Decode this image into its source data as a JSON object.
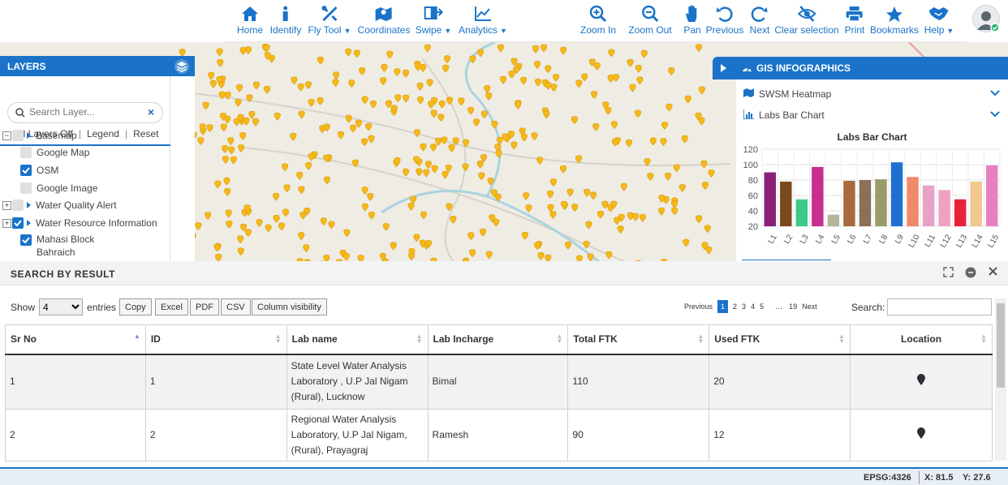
{
  "toolbar": {
    "tools": [
      {
        "label": "Home",
        "icon": "home-icon",
        "dropdown": false
      },
      {
        "label": "Identify",
        "icon": "info-icon",
        "dropdown": false
      },
      {
        "label": "Fly Tool",
        "icon": "fly-tool-icon",
        "dropdown": true
      },
      {
        "label": "Coordinates",
        "icon": "map-coordinates-icon",
        "dropdown": false
      },
      {
        "label": "Swipe",
        "icon": "swipe-icon",
        "dropdown": true
      },
      {
        "label": "Analytics",
        "icon": "analytics-icon",
        "dropdown": true
      },
      {
        "label": "Zoom In",
        "icon": "zoom-in-icon",
        "dropdown": false
      },
      {
        "label": "Zoom Out",
        "icon": "zoom-out-icon",
        "dropdown": false
      },
      {
        "label": "Pan",
        "icon": "pan-hand-icon",
        "dropdown": false
      },
      {
        "label": "Previous",
        "icon": "undo-icon",
        "dropdown": false
      },
      {
        "label": "Next",
        "icon": "redo-icon",
        "dropdown": false
      },
      {
        "label": "Clear selection",
        "icon": "eye-slash-icon",
        "dropdown": false
      },
      {
        "label": "Print",
        "icon": "print-icon",
        "dropdown": false
      },
      {
        "label": "Bookmarks",
        "icon": "star-icon",
        "dropdown": false
      },
      {
        "label": "Help",
        "icon": "handshake-icon",
        "dropdown": true
      }
    ]
  },
  "layers": {
    "title": "LAYERS",
    "search_placeholder": "Search Layer...",
    "actions": [
      "All Layers Off",
      "Legend",
      "Reset"
    ],
    "items": [
      {
        "label": "Basemap",
        "checked": false,
        "expand": "minus",
        "group": true
      },
      {
        "label": "Google Map",
        "checked": false,
        "expand": "",
        "group": false
      },
      {
        "label": "OSM",
        "checked": true,
        "expand": "",
        "group": false
      },
      {
        "label": "Google Image",
        "checked": false,
        "expand": "",
        "group": false
      },
      {
        "label": "Water Quality Alert",
        "checked": false,
        "expand": "plus",
        "group": true
      },
      {
        "label": "Water Resource Information",
        "checked": true,
        "expand": "plus",
        "group": true
      },
      {
        "label": "Mahasi Block",
        "label2": "Bahraich",
        "checked": true,
        "expand": "",
        "group": false
      }
    ]
  },
  "infographics": {
    "title": "GIS INFOGRAPHICS",
    "sections": [
      "SWSM Heatmap",
      "Labs Bar Chart"
    ]
  },
  "chart_data": {
    "type": "bar",
    "title": "Labs Bar Chart",
    "categories": [
      "L1",
      "L2",
      "L3",
      "L4",
      "L5",
      "L6",
      "L7",
      "L8",
      "L9",
      "L10",
      "L11",
      "L12",
      "L13",
      "L14",
      "L15"
    ],
    "values": [
      90,
      78,
      55,
      97,
      35,
      79,
      80,
      81,
      103,
      84,
      73,
      67,
      55,
      78,
      99
    ],
    "colors": [
      "#8a1f7a",
      "#7a4a1e",
      "#3cc98c",
      "#c62e8f",
      "#b5b59c",
      "#a86a3e",
      "#8c6f5a",
      "#9b9b6a",
      "#1f6fd1",
      "#f08a6a",
      "#e8a2c8",
      "#f0a0c0",
      "#e8223a",
      "#f0c890",
      "#e880c0"
    ],
    "ylim": [
      20,
      120
    ],
    "yticks": [
      20,
      40,
      60,
      80,
      100,
      120
    ],
    "grid": true
  },
  "results": {
    "title": "SEARCH BY RESULT",
    "show_label": "Show",
    "entries_value": "4",
    "entries_label": "entries",
    "buttons": [
      "Copy",
      "Excel",
      "PDF",
      "CSV",
      "Column visibility"
    ],
    "pager": {
      "previous": "Previous",
      "pages": [
        "1",
        "2",
        "3",
        "4",
        "5"
      ],
      "ellipsis": "…",
      "last": "19",
      "next": "Next"
    },
    "search_label": "Search:",
    "columns": [
      "Sr No",
      "ID",
      "Lab name",
      "Lab Incharge",
      "Total FTK",
      "Used FTK",
      "Location"
    ],
    "rows": [
      {
        "sr": "1",
        "id": "1",
        "lab": [
          "State Level Water Analysis",
          "Laboratory , U.P Jal Nigam",
          "(Rural), Lucknow"
        ],
        "incharge": "Bimal",
        "total": "110",
        "used": "20"
      },
      {
        "sr": "2",
        "id": "2",
        "lab": [
          "Regional Water Analysis",
          "Laboratory, U.P Jal Nigam,",
          "(Rural), Prayagraj"
        ],
        "incharge": "Ramesh",
        "total": "90",
        "used": "12"
      }
    ]
  },
  "status": {
    "epsg": "EPSG:4326",
    "x": "X: 81.5",
    "y": "Y: 27.6"
  }
}
